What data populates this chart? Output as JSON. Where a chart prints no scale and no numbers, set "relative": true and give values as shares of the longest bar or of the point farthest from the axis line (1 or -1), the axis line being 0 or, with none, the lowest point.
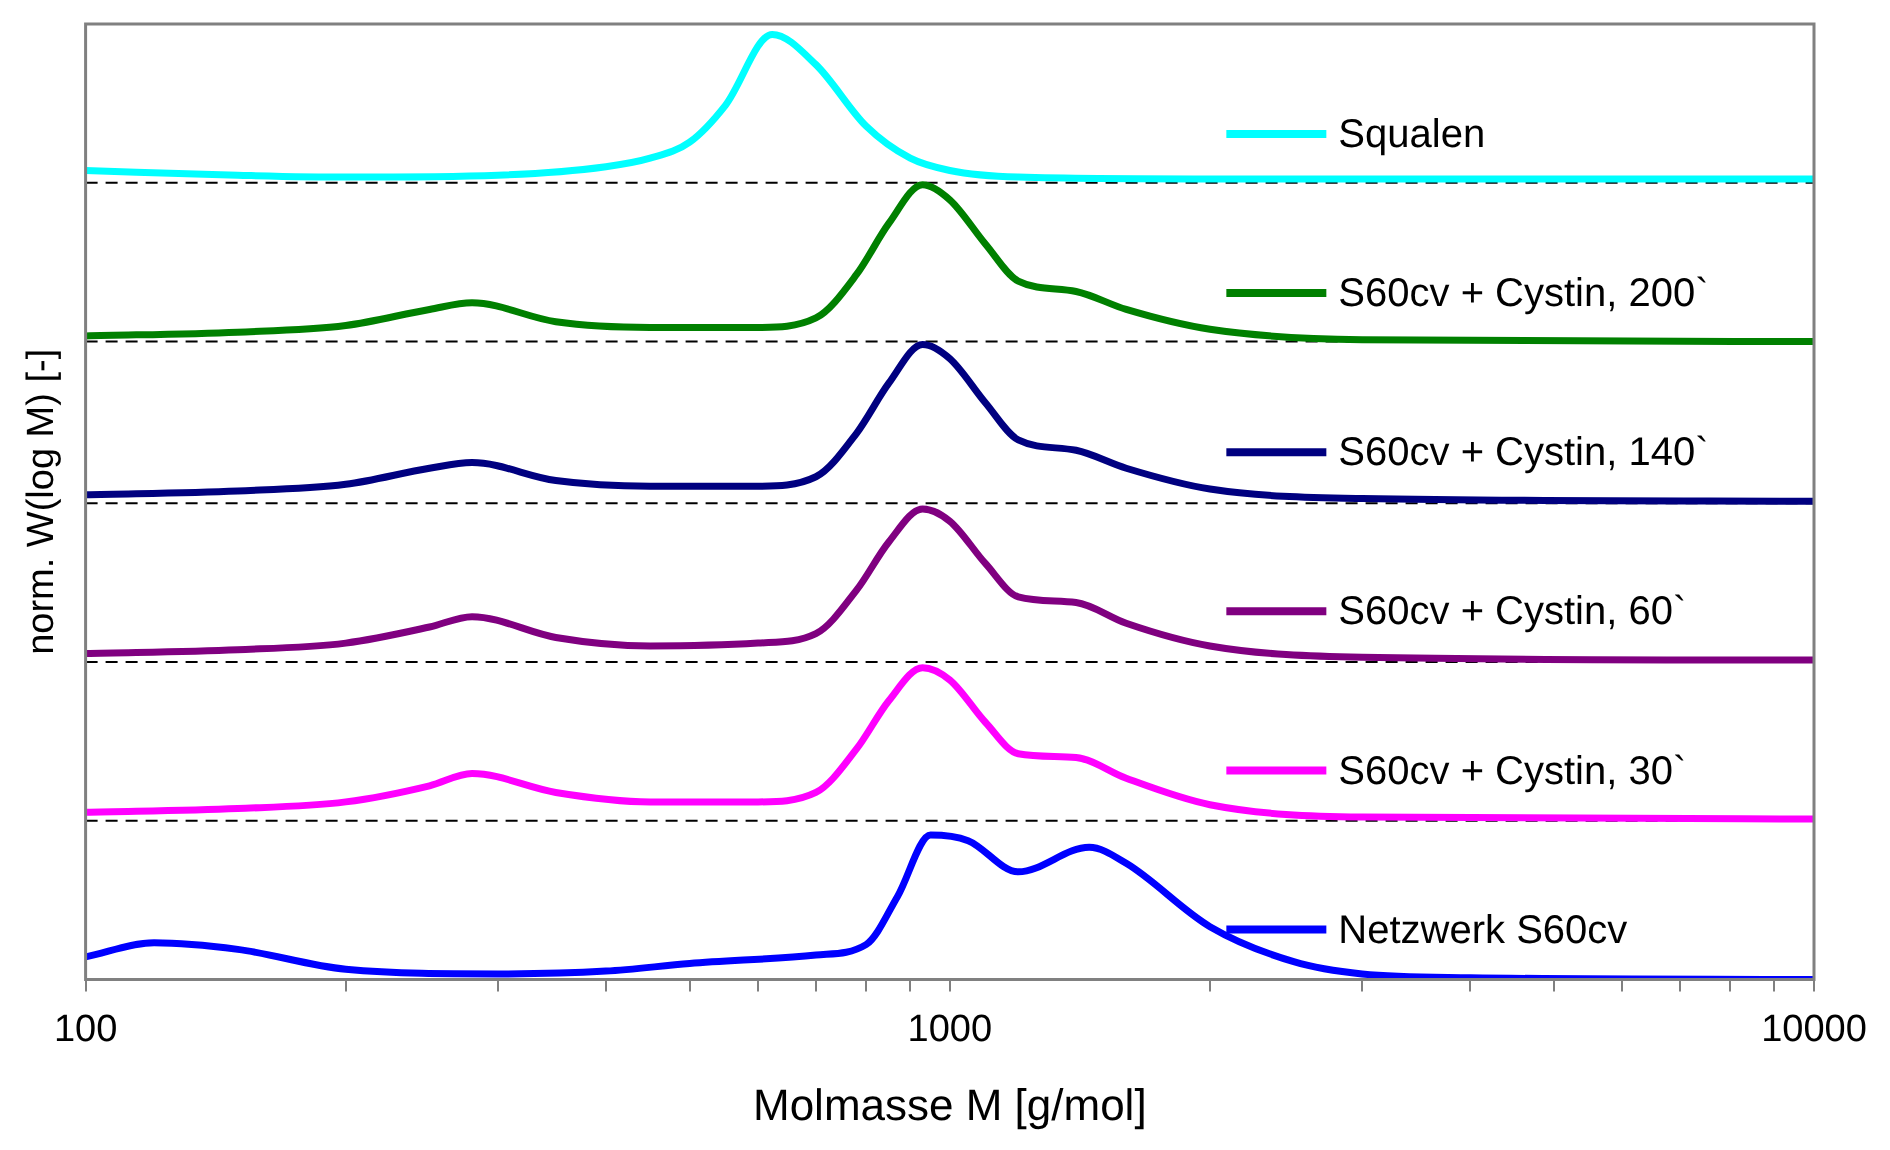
{
  "chart_data": {
    "type": "line",
    "xlabel": "Molmasse M [g/mol]",
    "ylabel": "norm. W(log M) [-]",
    "relative": true,
    "log": "x",
    "grid": false,
    "legend": "right",
    "marker": "none",
    "line_style": "solid",
    "xlim": [
      100,
      10000
    ],
    "xticks": [
      100,
      {
        "value": 200,
        "label": null
      },
      {
        "value": 300,
        "label": null
      },
      {
        "value": 400,
        "label": null
      },
      {
        "value": 500,
        "label": null
      },
      {
        "value": 600,
        "label": null
      },
      {
        "value": 700,
        "label": null
      },
      {
        "value": 800,
        "label": null
      },
      {
        "value": 900,
        "label": null
      },
      1000,
      {
        "value": 2000,
        "label": null
      },
      {
        "value": 3000,
        "label": null
      },
      {
        "value": 4000,
        "label": null
      },
      {
        "value": 5000,
        "label": null
      },
      {
        "value": 6000,
        "label": null
      },
      {
        "value": 7000,
        "label": null
      },
      {
        "value": 8000,
        "label": null
      },
      {
        "value": 9000,
        "label": null
      },
      10000
    ],
    "ref_lines": [
      {
        "axis": "y",
        "value": 0.843,
        "color": "#000000",
        "line_style": "dashed"
      },
      {
        "axis": "y",
        "value": 0.675,
        "color": "#000000",
        "line_style": "dashed"
      },
      {
        "axis": "y",
        "value": 0.504,
        "color": "#000000",
        "line_style": "dashed"
      },
      {
        "axis": "y",
        "value": 0.336,
        "color": "#000000",
        "line_style": "dashed"
      },
      {
        "axis": "y",
        "value": 0.168,
        "color": "#000000",
        "line_style": "dashed"
      }
    ],
    "series": [
      {
        "name": "Squalen",
        "color": "#00ffff",
        "x": [
          100,
          150,
          200,
          300,
          400,
          450,
          500,
          550,
          623,
          700,
          800,
          900,
          1000,
          1200,
          2000,
          10000
        ],
        "values": [
          0.856,
          0.851,
          0.849,
          0.851,
          0.86,
          0.869,
          0.886,
          0.925,
          1,
          0.968,
          0.903,
          0.869,
          0.856,
          0.849,
          0.847,
          0.847
        ]
      },
      {
        "name": "S60cv + Cystin, 200`",
        "color": "#008000",
        "x": [
          100,
          150,
          200,
          250,
          280,
          350,
          450,
          600,
          700,
          780,
          850,
          930,
          1000,
          1100,
          1200,
          1400,
          1600,
          2000,
          3000,
          10000
        ],
        "values": [
          0.681,
          0.685,
          0.692,
          0.709,
          0.716,
          0.696,
          0.69,
          0.69,
          0.7,
          0.746,
          0.8,
          0.841,
          0.825,
          0.778,
          0.739,
          0.728,
          0.709,
          0.688,
          0.677,
          0.675
        ]
      },
      {
        "name": "S60cv + Cystin, 140`",
        "color": "#000080",
        "x": [
          100,
          150,
          200,
          250,
          280,
          350,
          450,
          600,
          700,
          780,
          850,
          930,
          1000,
          1100,
          1200,
          1400,
          1600,
          2000,
          3000,
          10000
        ],
        "values": [
          0.513,
          0.517,
          0.524,
          0.541,
          0.547,
          0.528,
          0.522,
          0.522,
          0.532,
          0.578,
          0.631,
          0.672,
          0.657,
          0.61,
          0.571,
          0.56,
          0.541,
          0.519,
          0.509,
          0.506
        ]
      },
      {
        "name": "S60cv + Cystin, 60`",
        "color": "#800080",
        "x": [
          100,
          150,
          200,
          250,
          280,
          350,
          450,
          600,
          700,
          780,
          850,
          930,
          1000,
          1100,
          1200,
          1400,
          1600,
          2000,
          3000,
          10000
        ],
        "values": [
          0.345,
          0.349,
          0.356,
          0.373,
          0.384,
          0.362,
          0.353,
          0.356,
          0.366,
          0.412,
          0.463,
          0.498,
          0.485,
          0.44,
          0.405,
          0.399,
          0.377,
          0.353,
          0.341,
          0.338
        ]
      },
      {
        "name": "S60cv + Cystin, 30`",
        "color": "#ff00ff",
        "x": [
          100,
          150,
          200,
          250,
          280,
          350,
          450,
          600,
          700,
          780,
          850,
          930,
          1000,
          1100,
          1200,
          1400,
          1600,
          2000,
          3000,
          10000
        ],
        "values": [
          0.177,
          0.181,
          0.188,
          0.205,
          0.218,
          0.198,
          0.188,
          0.188,
          0.198,
          0.244,
          0.295,
          0.33,
          0.317,
          0.272,
          0.239,
          0.235,
          0.213,
          0.185,
          0.172,
          0.17
        ]
      },
      {
        "name": "Netzwerk S60cv",
        "color": "#0000ff",
        "x": [
          100,
          120,
          150,
          200,
          300,
          400,
          500,
          700,
          800,
          870,
          950,
          1050,
          1200,
          1450,
          1600,
          2000,
          2500,
          3000,
          4000,
          10000
        ],
        "values": [
          0.024,
          0.039,
          0.032,
          0.011,
          0.006,
          0.009,
          0.017,
          0.026,
          0.037,
          0.088,
          0.153,
          0.147,
          0.114,
          0.14,
          0.123,
          0.056,
          0.019,
          0.006,
          0.002,
          0
        ]
      }
    ]
  }
}
